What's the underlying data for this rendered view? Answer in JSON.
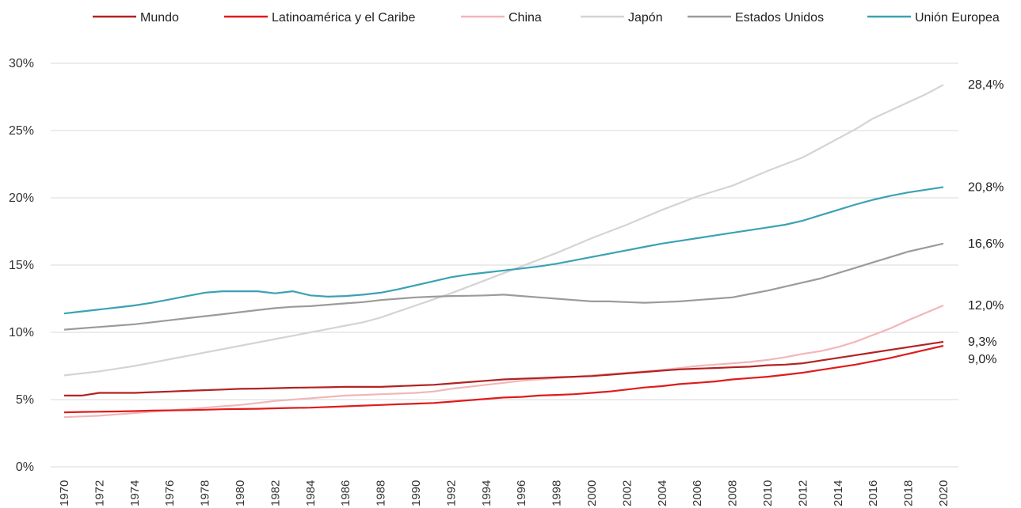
{
  "chart_data": {
    "type": "line",
    "x": [
      1970,
      1971,
      1972,
      1973,
      1974,
      1975,
      1976,
      1977,
      1978,
      1979,
      1980,
      1981,
      1982,
      1983,
      1984,
      1985,
      1986,
      1987,
      1988,
      1989,
      1990,
      1991,
      1992,
      1993,
      1994,
      1995,
      1996,
      1997,
      1998,
      1999,
      2000,
      2001,
      2002,
      2003,
      2004,
      2005,
      2006,
      2007,
      2008,
      2009,
      2010,
      2011,
      2012,
      2013,
      2014,
      2015,
      2016,
      2017,
      2018,
      2019,
      2020
    ],
    "x_tick_labels": [
      "1970",
      "1972",
      "1974",
      "1976",
      "1978",
      "1980",
      "1982",
      "1984",
      "1986",
      "1988",
      "1990",
      "1992",
      "1994",
      "1996",
      "1998",
      "2000",
      "2002",
      "2004",
      "2006",
      "2008",
      "2010",
      "2012",
      "2014",
      "2016",
      "2018",
      "2020"
    ],
    "y_ticks": [
      0,
      5,
      10,
      15,
      20,
      25,
      30
    ],
    "y_tick_labels": [
      "0%",
      "5%",
      "10%",
      "15%",
      "20%",
      "25%",
      "30%"
    ],
    "ylim": [
      0,
      30
    ],
    "grid": "horizontal",
    "legend_position": "top",
    "series": [
      {
        "name": "Mundo",
        "color": "#b22222",
        "end_label": "9,3%",
        "values": [
          5.3,
          5.3,
          5.5,
          5.5,
          5.5,
          5.55,
          5.6,
          5.65,
          5.7,
          5.75,
          5.8,
          5.82,
          5.85,
          5.88,
          5.9,
          5.92,
          5.95,
          5.95,
          5.95,
          6.0,
          6.05,
          6.1,
          6.2,
          6.3,
          6.4,
          6.5,
          6.55,
          6.6,
          6.65,
          6.7,
          6.75,
          6.85,
          6.95,
          7.05,
          7.15,
          7.25,
          7.3,
          7.35,
          7.4,
          7.45,
          7.55,
          7.6,
          7.7,
          7.9,
          8.1,
          8.3,
          8.5,
          8.7,
          8.9,
          9.1,
          9.3
        ]
      },
      {
        "name": "Latinoamérica y el Caribe",
        "color": "#e01b1b",
        "end_label": "9,0%",
        "values": [
          4.05,
          4.08,
          4.1,
          4.12,
          4.15,
          4.18,
          4.2,
          4.22,
          4.25,
          4.28,
          4.3,
          4.32,
          4.35,
          4.38,
          4.4,
          4.45,
          4.5,
          4.55,
          4.6,
          4.65,
          4.7,
          4.75,
          4.85,
          4.95,
          5.05,
          5.15,
          5.2,
          5.3,
          5.35,
          5.4,
          5.5,
          5.6,
          5.75,
          5.9,
          6.0,
          6.15,
          6.25,
          6.35,
          6.5,
          6.6,
          6.7,
          6.85,
          7.0,
          7.2,
          7.4,
          7.6,
          7.85,
          8.1,
          8.4,
          8.7,
          9.0
        ]
      },
      {
        "name": "China",
        "color": "#f2b6b8",
        "end_label": "12,0%",
        "values": [
          3.7,
          3.75,
          3.8,
          3.9,
          4.0,
          4.1,
          4.2,
          4.3,
          4.4,
          4.5,
          4.6,
          4.75,
          4.9,
          5.0,
          5.1,
          5.2,
          5.3,
          5.35,
          5.4,
          5.45,
          5.5,
          5.6,
          5.8,
          5.95,
          6.1,
          6.25,
          6.4,
          6.5,
          6.6,
          6.7,
          6.8,
          6.9,
          7.0,
          7.1,
          7.2,
          7.35,
          7.5,
          7.6,
          7.7,
          7.8,
          7.95,
          8.15,
          8.4,
          8.6,
          8.9,
          9.3,
          9.8,
          10.3,
          10.9,
          11.45,
          12.0
        ]
      },
      {
        "name": "Japón",
        "color": "#d4d4d4",
        "end_label": "28,4%",
        "values": [
          6.8,
          6.95,
          7.1,
          7.3,
          7.5,
          7.75,
          8.0,
          8.25,
          8.5,
          8.75,
          9.0,
          9.25,
          9.5,
          9.75,
          10.0,
          10.25,
          10.5,
          10.75,
          11.1,
          11.55,
          12.0,
          12.45,
          12.9,
          13.4,
          13.9,
          14.4,
          14.9,
          15.4,
          15.9,
          16.45,
          17.0,
          17.5,
          18.0,
          18.55,
          19.1,
          19.6,
          20.1,
          20.5,
          20.9,
          21.45,
          22.0,
          22.5,
          23.0,
          23.7,
          24.4,
          25.1,
          25.9,
          26.5,
          27.1,
          27.7,
          28.4
        ]
      },
      {
        "name": "Estados Unidos",
        "color": "#9b9b9b",
        "end_label": "16,6%",
        "values": [
          10.2,
          10.3,
          10.4,
          10.5,
          10.6,
          10.75,
          10.9,
          11.05,
          11.2,
          11.35,
          11.5,
          11.65,
          11.8,
          11.9,
          11.95,
          12.05,
          12.15,
          12.25,
          12.4,
          12.5,
          12.6,
          12.65,
          12.7,
          12.72,
          12.75,
          12.8,
          12.7,
          12.6,
          12.5,
          12.4,
          12.3,
          12.3,
          12.25,
          12.2,
          12.25,
          12.3,
          12.4,
          12.5,
          12.6,
          12.85,
          13.1,
          13.4,
          13.7,
          14.0,
          14.4,
          14.8,
          15.2,
          15.6,
          16.0,
          16.3,
          16.6
        ]
      },
      {
        "name": "Unión Europea",
        "color": "#3aa2b4",
        "end_label": "20,8%",
        "values": [
          11.4,
          11.55,
          11.7,
          11.85,
          12.0,
          12.2,
          12.45,
          12.7,
          12.95,
          13.05,
          13.05,
          13.05,
          12.9,
          13.05,
          12.75,
          12.65,
          12.7,
          12.8,
          12.95,
          13.2,
          13.5,
          13.8,
          14.1,
          14.3,
          14.45,
          14.6,
          14.75,
          14.9,
          15.1,
          15.35,
          15.6,
          15.85,
          16.1,
          16.35,
          16.6,
          16.8,
          17.0,
          17.2,
          17.4,
          17.6,
          17.8,
          18.0,
          18.3,
          18.7,
          19.1,
          19.5,
          19.85,
          20.15,
          20.4,
          20.6,
          20.8
        ]
      }
    ]
  }
}
